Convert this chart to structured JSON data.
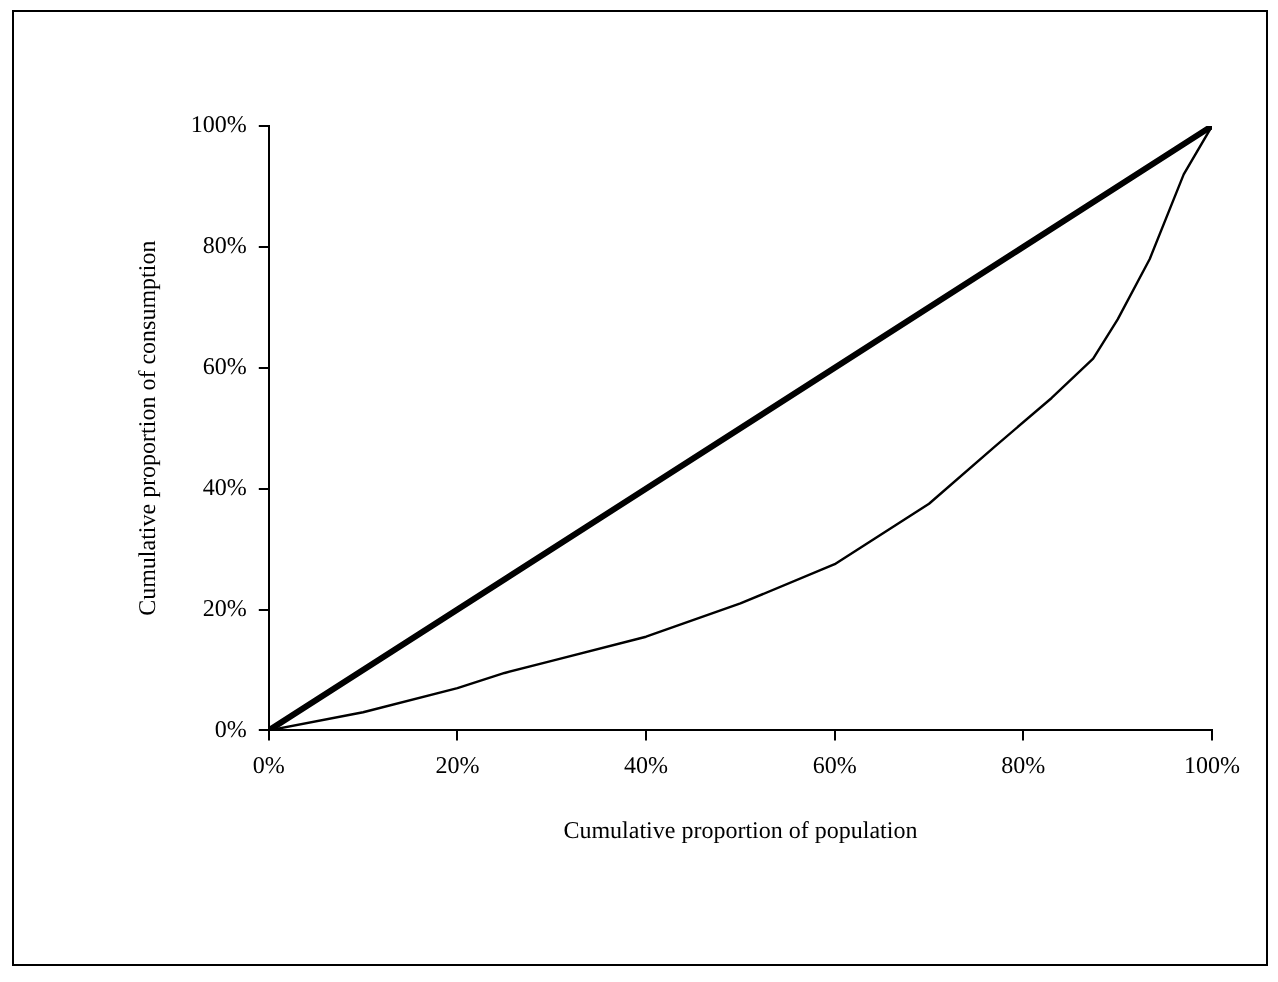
{
  "chart_data": {
    "type": "line",
    "xlabel": "Cumulative proportion of population",
    "ylabel": "Cumulative proportion of consumption",
    "xlim": [
      0,
      100
    ],
    "xticks": [
      {
        "value": 0,
        "label": "0%"
      },
      {
        "value": 20,
        "label": "20%"
      },
      {
        "value": 40,
        "label": "40%"
      },
      {
        "value": 60,
        "label": "60%"
      },
      {
        "value": 80,
        "label": "80%"
      },
      {
        "value": 100,
        "label": "100%"
      }
    ],
    "ylim": [
      0,
      100
    ],
    "yticks": [
      {
        "value": 0,
        "label": "0%"
      },
      {
        "value": 20,
        "label": "20%"
      },
      {
        "value": 40,
        "label": "40%"
      },
      {
        "value": 60,
        "label": "60%"
      },
      {
        "value": 80,
        "label": "80%"
      },
      {
        "value": 100,
        "label": "100%"
      }
    ],
    "series": [
      {
        "color": "#000000",
        "x": [
          0,
          100
        ],
        "values": [
          0,
          100
        ]
      },
      {
        "color": "#000000",
        "x": [
          0,
          10,
          20,
          25,
          30,
          40,
          50,
          60,
          70,
          77,
          83,
          87.4,
          90,
          93.4,
          97,
          100
        ],
        "values": [
          0,
          3,
          7,
          9.5,
          11.5,
          15.5,
          21,
          27.5,
          37.5,
          47,
          55,
          61.5,
          68,
          78,
          92,
          100
        ]
      }
    ],
    "grid": false,
    "legend": false,
    "marker": "none",
    "line_style": "solid"
  }
}
